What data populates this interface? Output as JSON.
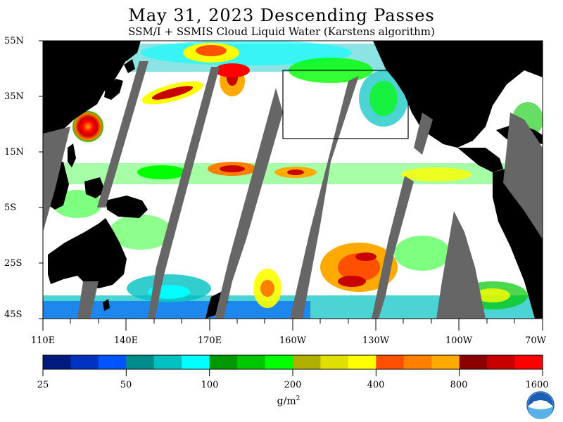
{
  "header": {
    "title": "May 31, 2023  Descending Passes",
    "subtitle": "SSM/I + SSMIS Cloud Liquid Water (Karstens algorithm)"
  },
  "axes": {
    "lat_labels": [
      "55N",
      "35N",
      "15N",
      "5S",
      "25S",
      "45S"
    ],
    "lon_labels": [
      "110E",
      "140E",
      "170E",
      "160W",
      "130W",
      "100W",
      "70W"
    ]
  },
  "colorbar": {
    "colors": [
      "#001a80",
      "#0033c0",
      "#0055ff",
      "#008c8c",
      "#00c0c0",
      "#00ffff",
      "#009900",
      "#00c800",
      "#00ff00",
      "#b0b000",
      "#e0e000",
      "#ffff00",
      "#ff5000",
      "#ff8000",
      "#ffaa00",
      "#8c0000",
      "#c80000",
      "#ff0000"
    ],
    "tick_labels": [
      "25",
      "50",
      "100",
      "200",
      "400",
      "800",
      "1600"
    ],
    "units_base": "g/m",
    "units_exp": "2"
  },
  "colors": {
    "land": "#000000",
    "no_data": "#666666",
    "ocean_clear": "#ffffff"
  },
  "logo": {
    "text": "NOAA",
    "icon": "noaa-logo-icon"
  }
}
